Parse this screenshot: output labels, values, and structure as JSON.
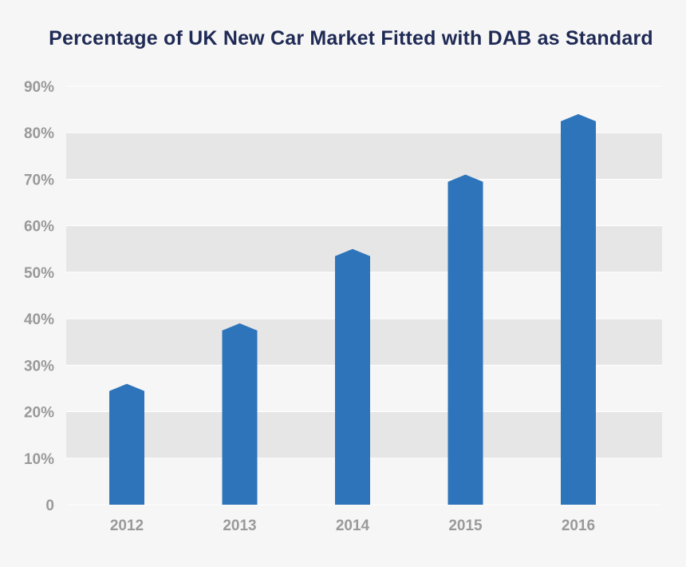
{
  "chart_data": {
    "type": "bar",
    "title": "Percentage of UK New Car Market Fitted with DAB as Standard",
    "categories": [
      "2012",
      "2013",
      "2014",
      "2015",
      "2016"
    ],
    "values": [
      26,
      39,
      55,
      71,
      84
    ],
    "unit": "%",
    "ylim": [
      0,
      90
    ],
    "yticks": [
      0,
      10,
      20,
      30,
      40,
      50,
      60,
      70,
      80,
      90
    ],
    "ytick_labels": [
      "0",
      "10%",
      "20%",
      "30%",
      "40%",
      "50%",
      "60%",
      "70%",
      "80%",
      "90%"
    ],
    "xlabel": "",
    "ylabel": "",
    "grid": "alternating horizontal bands",
    "legend": "none",
    "colors": {
      "bar": "#2e74ba",
      "band": "#e6e6e6",
      "background": "#f6f6f6",
      "title": "#1f2a55",
      "tick": "#9a9a9a",
      "gridline": "#ffffff"
    }
  }
}
